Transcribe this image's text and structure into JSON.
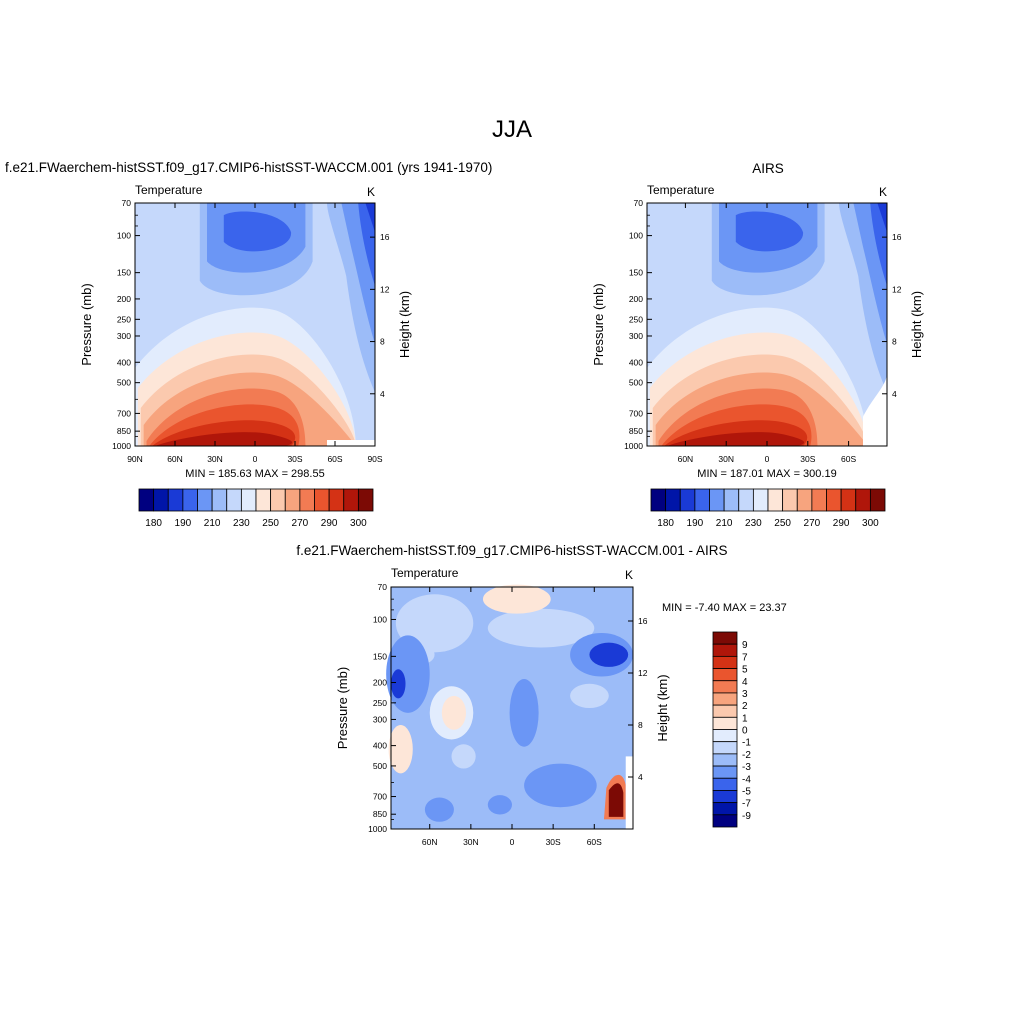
{
  "figure": {
    "title": "JJA"
  },
  "colors": {
    "abs_scale": [
      "#000080",
      "#0015a8",
      "#1a3ad6",
      "#3a64ec",
      "#6b96f5",
      "#9cbcf8",
      "#c5d8fb",
      "#e2ecfd",
      "#fde6d8",
      "#fbc9ae",
      "#f7a47e",
      "#f27b53",
      "#ea552e",
      "#d43215",
      "#b0160a",
      "#7c0a05"
    ],
    "diff_scale": [
      "#000080",
      "#0015a8",
      "#1a3ad6",
      "#3a64ec",
      "#6b96f5",
      "#9cbcf8",
      "#c5d8fb",
      "#e2ecfd",
      "#fde6d8",
      "#fbc9ae",
      "#f7a47e",
      "#f27b53",
      "#ea552e",
      "#d43215",
      "#b0160a",
      "#7c0a05"
    ]
  },
  "panels": {
    "model": {
      "title": "f.e21.FWaerchem-histSST.f09_g17.CMIP6-histSST-WACCM.001 (yrs 1941-1970)",
      "left_label": "Temperature",
      "right_label": "K",
      "stats": "MIN = 185.63  MAX = 298.55",
      "ylabel": "Pressure (mb)",
      "ylabel_right": "Height (km)",
      "colorbar_ticks": [
        "180",
        "190",
        "210",
        "230",
        "250",
        "270",
        "290",
        "300"
      ]
    },
    "obs": {
      "title": "AIRS",
      "left_label": "Temperature",
      "right_label": "K",
      "stats": "MIN = 187.01  MAX = 300.19",
      "ylabel": "Pressure (mb)",
      "ylabel_right": "Height (km)",
      "colorbar_ticks": [
        "180",
        "190",
        "210",
        "230",
        "250",
        "270",
        "290",
        "300"
      ]
    },
    "diff": {
      "title": "f.e21.FWaerchem-histSST.f09_g17.CMIP6-histSST-WACCM.001 - AIRS",
      "left_label": "Temperature",
      "right_label": "K",
      "stats": "MIN =  -7.40  MAX =  23.37",
      "ylabel": "Pressure (mb)",
      "ylabel_right": "Height (km)",
      "colorbar_ticks": [
        "9",
        "7",
        "5",
        "4",
        "3",
        "2",
        "1",
        "0",
        "-1",
        "-2",
        "-3",
        "-4",
        "-5",
        "-7",
        "-9"
      ]
    }
  },
  "chart_data": [
    {
      "type": "heatmap",
      "title": "f.e21.FWaerchem-histSST.f09_g17.CMIP6-histSST-WACCM.001 (yrs 1941-1970)",
      "xlabel": "",
      "ylabel": "Pressure (mb)",
      "ylabel_right": "Height (km)",
      "x_ticks": [
        "90N",
        "60N",
        "30N",
        "0",
        "30S",
        "60S",
        "90S"
      ],
      "y_ticks": [
        "70",
        "100",
        "150",
        "200",
        "250",
        "300",
        "400",
        "500",
        "700",
        "850",
        "1000"
      ],
      "y_right_ticks": [
        "4",
        "8",
        "12",
        "16"
      ],
      "ylim": [
        1000,
        70
      ],
      "y_scale": "log",
      "min": 185.63,
      "max": 298.55,
      "units": "K",
      "levels": [
        180,
        190,
        200,
        210,
        220,
        230,
        240,
        250,
        260,
        270,
        280,
        290,
        300
      ]
    },
    {
      "type": "heatmap",
      "title": "AIRS",
      "xlabel": "",
      "ylabel": "Pressure (mb)",
      "ylabel_right": "Height (km)",
      "x_ticks": [
        "60N",
        "30N",
        "0",
        "30S",
        "60S"
      ],
      "y_ticks": [
        "70",
        "100",
        "150",
        "200",
        "250",
        "300",
        "400",
        "500",
        "700",
        "850",
        "1000"
      ],
      "y_right_ticks": [
        "4",
        "8",
        "12",
        "16"
      ],
      "ylim": [
        1000,
        70
      ],
      "y_scale": "log",
      "min": 187.01,
      "max": 300.19,
      "units": "K",
      "levels": [
        180,
        190,
        200,
        210,
        220,
        230,
        240,
        250,
        260,
        270,
        280,
        290,
        300
      ]
    },
    {
      "type": "heatmap",
      "title": "f.e21.FWaerchem-histSST.f09_g17.CMIP6-histSST-WACCM.001 - AIRS",
      "xlabel": "",
      "ylabel": "Pressure (mb)",
      "ylabel_right": "Height (km)",
      "x_ticks": [
        "60N",
        "30N",
        "0",
        "30S",
        "60S"
      ],
      "y_ticks": [
        "70",
        "100",
        "150",
        "200",
        "250",
        "300",
        "400",
        "500",
        "700",
        "850",
        "1000"
      ],
      "y_right_ticks": [
        "4",
        "8",
        "12",
        "16"
      ],
      "ylim": [
        1000,
        70
      ],
      "y_scale": "log",
      "min": -7.4,
      "max": 23.37,
      "units": "K",
      "levels": [
        -9,
        -7,
        -5,
        -4,
        -3,
        -2,
        -1,
        0,
        1,
        2,
        3,
        4,
        5,
        7,
        9
      ]
    }
  ]
}
